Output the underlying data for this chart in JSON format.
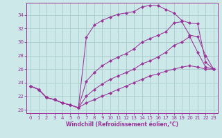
{
  "xlabel": "Windchill (Refroidissement éolien,°C)",
  "bg_color": "#cce8e8",
  "line_color": "#993399",
  "grid_color": "#aacccc",
  "xlim_min": -0.5,
  "xlim_max": 23.5,
  "ylim_min": 19.5,
  "ylim_max": 35.8,
  "xticks": [
    0,
    1,
    2,
    3,
    4,
    5,
    6,
    7,
    8,
    9,
    10,
    11,
    12,
    13,
    14,
    15,
    16,
    17,
    18,
    19,
    20,
    21,
    22,
    23
  ],
  "yticks": [
    20,
    22,
    24,
    26,
    28,
    30,
    32,
    34
  ],
  "lines": [
    {
      "x": [
        0,
        1,
        2,
        3,
        4,
        5,
        6,
        7,
        8,
        9,
        10,
        11,
        12,
        13,
        14,
        15,
        16,
        17,
        18,
        19,
        20,
        21,
        22,
        23
      ],
      "y": [
        23.5,
        23.0,
        21.8,
        21.5,
        21.0,
        20.7,
        20.3,
        30.7,
        32.5,
        33.2,
        33.7,
        34.1,
        34.3,
        34.5,
        35.2,
        35.4,
        35.4,
        34.8,
        34.3,
        33.2,
        32.8,
        32.7,
        27.0,
        26.0
      ]
    },
    {
      "x": [
        0,
        1,
        2,
        3,
        4,
        5,
        6,
        7,
        8,
        9,
        10,
        11,
        12,
        13,
        14,
        15,
        16,
        17,
        18,
        19,
        20,
        21,
        22,
        23
      ],
      "y": [
        23.5,
        23.0,
        21.8,
        21.5,
        21.0,
        20.7,
        20.3,
        24.2,
        25.5,
        26.5,
        27.2,
        27.8,
        28.3,
        29.0,
        30.0,
        30.5,
        31.0,
        31.5,
        32.8,
        33.0,
        31.0,
        30.8,
        28.0,
        26.0
      ]
    },
    {
      "x": [
        0,
        1,
        2,
        3,
        4,
        5,
        6,
        7,
        8,
        9,
        10,
        11,
        12,
        13,
        14,
        15,
        16,
        17,
        18,
        19,
        20,
        21,
        22,
        23
      ],
      "y": [
        23.5,
        23.0,
        21.8,
        21.5,
        21.0,
        20.7,
        20.3,
        22.0,
        23.0,
        23.8,
        24.5,
        25.0,
        25.5,
        26.0,
        26.8,
        27.2,
        27.8,
        28.5,
        29.5,
        30.0,
        30.8,
        28.5,
        26.3,
        26.0
      ]
    },
    {
      "x": [
        0,
        1,
        2,
        3,
        4,
        5,
        6,
        7,
        8,
        9,
        10,
        11,
        12,
        13,
        14,
        15,
        16,
        17,
        18,
        19,
        20,
        21,
        22,
        23
      ],
      "y": [
        23.5,
        23.0,
        21.8,
        21.5,
        21.0,
        20.7,
        20.3,
        21.0,
        21.5,
        22.0,
        22.5,
        23.0,
        23.5,
        24.0,
        24.5,
        25.0,
        25.3,
        25.7,
        26.0,
        26.3,
        26.5,
        26.3,
        26.0,
        26.0
      ]
    }
  ]
}
